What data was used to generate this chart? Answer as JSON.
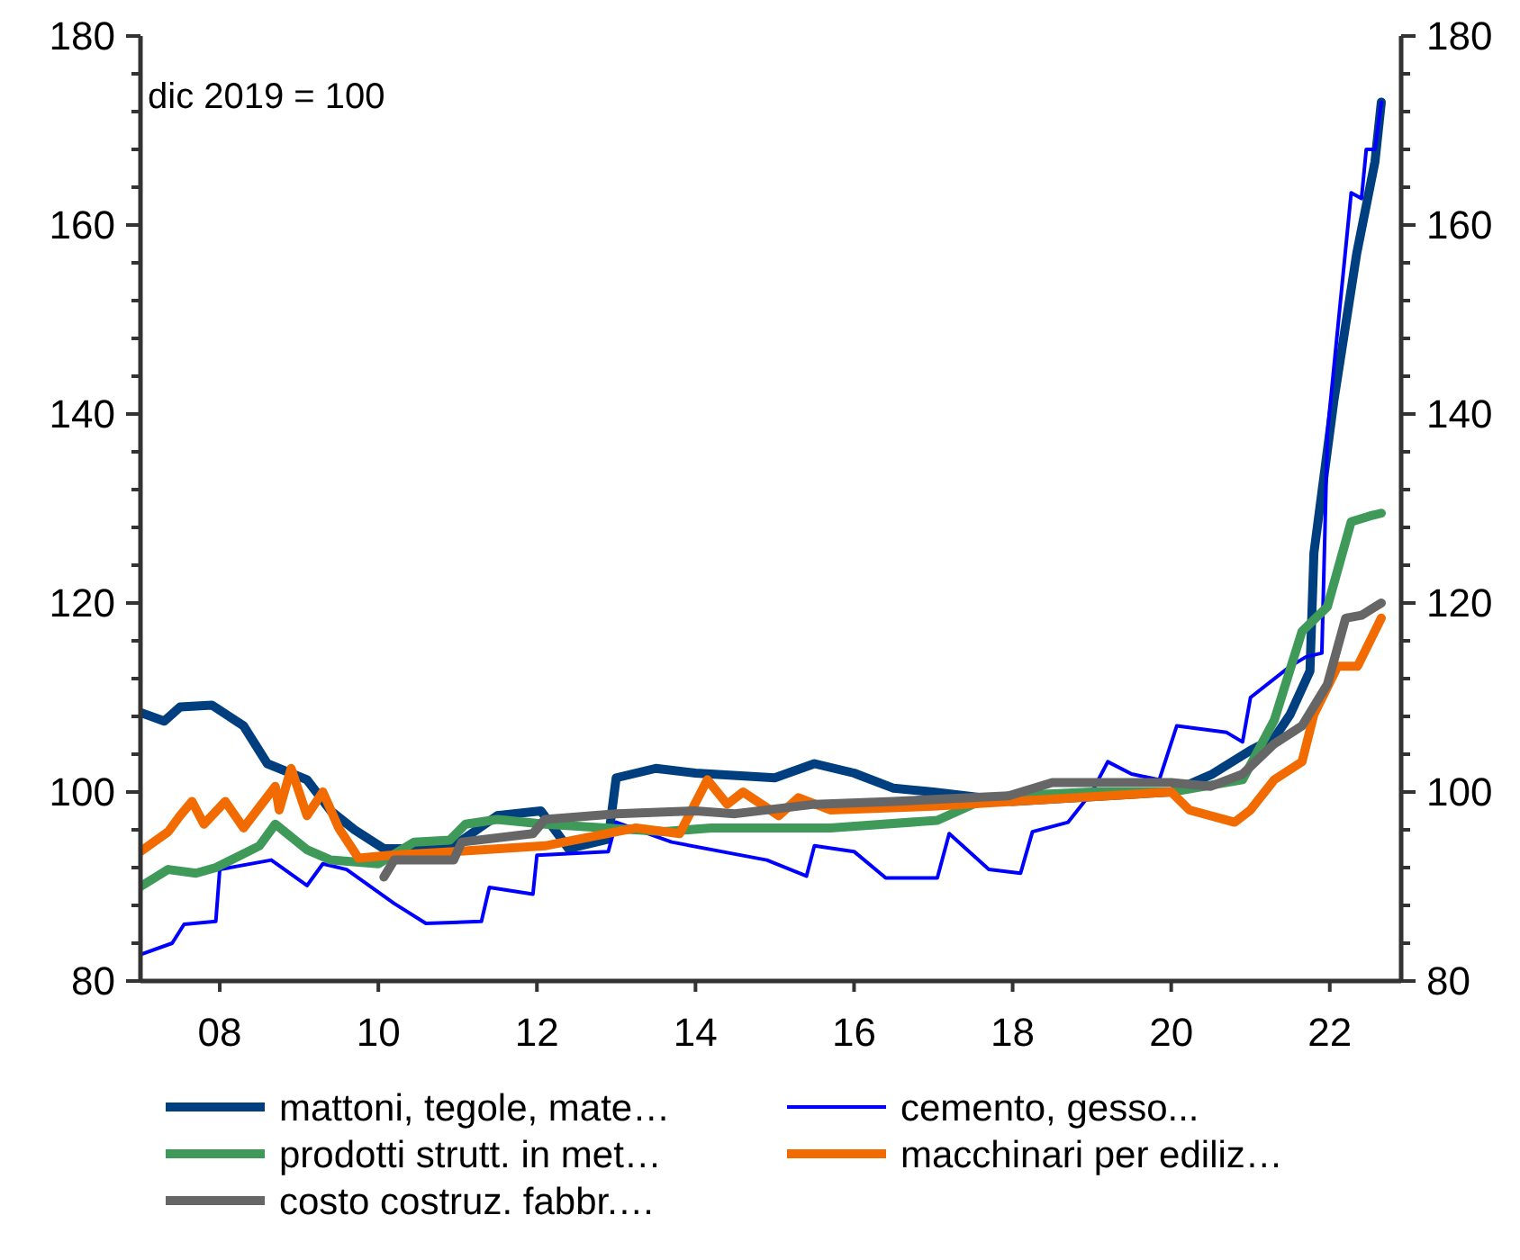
{
  "chart_data": {
    "type": "line",
    "annotations": [
      "dic 2019 = 100"
    ],
    "xlim": [
      2007,
      2022.9
    ],
    "xticks": [
      {
        "value": 2008,
        "label": "08"
      },
      {
        "value": 2010,
        "label": "10"
      },
      {
        "value": 2012,
        "label": "12"
      },
      {
        "value": 2014,
        "label": "14"
      },
      {
        "value": 2016,
        "label": "16"
      },
      {
        "value": 2018,
        "label": "18"
      },
      {
        "value": 2020,
        "label": "20"
      },
      {
        "value": 2022,
        "label": "22"
      }
    ],
    "ylim": [
      80,
      180
    ],
    "yticks": [
      80,
      {
        "value": 84,
        "label": null
      },
      {
        "value": 88,
        "label": null
      },
      {
        "value": 92,
        "label": null
      },
      {
        "value": 96,
        "label": null
      },
      100,
      {
        "value": 104,
        "label": null
      },
      {
        "value": 108,
        "label": null
      },
      {
        "value": 112,
        "label": null
      },
      {
        "value": 116,
        "label": null
      },
      120,
      {
        "value": 124,
        "label": null
      },
      {
        "value": 128,
        "label": null
      },
      {
        "value": 132,
        "label": null
      },
      {
        "value": 136,
        "label": null
      },
      140,
      {
        "value": 144,
        "label": null
      },
      {
        "value": 148,
        "label": null
      },
      {
        "value": 152,
        "label": null
      },
      {
        "value": 156,
        "label": null
      },
      160,
      {
        "value": 164,
        "label": null
      },
      {
        "value": 168,
        "label": null
      },
      {
        "value": 172,
        "label": null
      },
      {
        "value": 176,
        "label": null
      },
      180
    ],
    "y2lim": [
      80,
      180
    ],
    "y2ticks": [
      80,
      {
        "value": 84,
        "label": null
      },
      {
        "value": 88,
        "label": null
      },
      {
        "value": 92,
        "label": null
      },
      {
        "value": 96,
        "label": null
      },
      100,
      {
        "value": 104,
        "label": null
      },
      {
        "value": 108,
        "label": null
      },
      {
        "value": 112,
        "label": null
      },
      {
        "value": 116,
        "label": null
      },
      120,
      {
        "value": 124,
        "label": null
      },
      {
        "value": 128,
        "label": null
      },
      {
        "value": 132,
        "label": null
      },
      {
        "value": 136,
        "label": null
      },
      140,
      {
        "value": 144,
        "label": null
      },
      {
        "value": 148,
        "label": null
      },
      {
        "value": 152,
        "label": null
      },
      {
        "value": 156,
        "label": null
      },
      160,
      {
        "value": 164,
        "label": null
      },
      {
        "value": 168,
        "label": null
      },
      {
        "value": 172,
        "label": null
      },
      {
        "value": 176,
        "label": null
      },
      180
    ],
    "grid": false,
    "legend": "bottom",
    "marker": "none",
    "line_style": "solid",
    "series": [
      {
        "name": "mattoni, tegole, mate…",
        "color": "#003f7f",
        "x": [
          2007,
          2007.3,
          2007.5,
          2007.9,
          2008.3,
          2008.6,
          2009.1,
          2009.4,
          2009.7,
          2010.07,
          2010.9,
          2011.5,
          2012.05,
          2012.4,
          2012.9,
          2013.0,
          2013.5,
          2014,
          2015,
          2015.5,
          2016,
          2016.5,
          2017,
          2017.5,
          2018,
          2019,
          2020,
          2020.52,
          2021.0,
          2021.3,
          2021.5,
          2021.75,
          2021.8,
          2022.05,
          2022.34,
          2022.57,
          2022.65
        ],
        "values": [
          108.4,
          107.5,
          109,
          109.2,
          107,
          103,
          101.3,
          98,
          96,
          94,
          94,
          97.5,
          98,
          94,
          95,
          101.5,
          102.5,
          102,
          101.5,
          103,
          102,
          100.4,
          100,
          99.5,
          99,
          99.5,
          100,
          101.9,
          104.4,
          105.7,
          108.2,
          112.8,
          125.3,
          141.3,
          157,
          166.7,
          173
        ]
      },
      {
        "name": "cemento,  gesso...",
        "color": "#0000ff",
        "x": [
          2007,
          2007.4,
          2007.55,
          2007.95,
          2008.0,
          2008.65,
          2009.1,
          2009.3,
          2009.6,
          2010.2,
          2010.6,
          2011.3,
          2011.4,
          2011.95,
          2012.0,
          2012.9,
          2013.0,
          2013.7,
          2014.9,
          2015.4,
          2015.5,
          2016,
          2016.4,
          2017.05,
          2017.2,
          2017.7,
          2018.1,
          2018.25,
          2018.7,
          2019.0,
          2019.2,
          2019.5,
          2019.85,
          2020.07,
          2020.7,
          2020.9,
          2021.0,
          2021.5,
          2021.7,
          2021.9,
          2021.97,
          2022.27,
          2022.4,
          2022.46,
          2022.57,
          2022.65
        ],
        "values": [
          82.8,
          84,
          86,
          86.3,
          91.8,
          92.8,
          90.1,
          92.4,
          91.8,
          88.2,
          86.1,
          86.3,
          89.9,
          89.2,
          93.3,
          93.7,
          96.8,
          94.7,
          92.8,
          91.1,
          94.3,
          93.7,
          90.9,
          90.9,
          95.6,
          91.8,
          91.4,
          95.8,
          96.8,
          100,
          103.2,
          101.9,
          101.3,
          107,
          106.3,
          105.3,
          110,
          113.3,
          114.3,
          114.7,
          138,
          163.4,
          162.8,
          168,
          168,
          173
        ]
      },
      {
        "name": "prodotti strutt. in met…",
        "color": "#3f9a5a",
        "x": [
          2007,
          2007.35,
          2007.7,
          2007.95,
          2008.5,
          2008.7,
          2009.1,
          2009.4,
          2010.0,
          2010.45,
          2010.9,
          2011.1,
          2011.5,
          2012.1,
          2013.6,
          2014.2,
          2015.7,
          2017.05,
          2017.5,
          2017.95,
          2019,
          2020,
          2020.9,
          2021.3,
          2021.65,
          2021.97,
          2022.27,
          2022.5,
          2022.65
        ],
        "values": [
          90,
          91.8,
          91.4,
          92,
          94.3,
          96.6,
          93.9,
          92.8,
          92.4,
          94.7,
          94.9,
          96.6,
          97.1,
          96.6,
          95.8,
          96.2,
          96.2,
          97,
          98.7,
          99.6,
          100,
          100,
          101.3,
          107.6,
          117,
          119.6,
          128.6,
          129.2,
          129.5
        ]
      },
      {
        "name": "macchinari per ediliz…",
        "color": "#f26b00",
        "x": [
          2007,
          2007.35,
          2007.5,
          2007.65,
          2007.8,
          2008.07,
          2008.3,
          2008.7,
          2008.75,
          2008.9,
          2009.1,
          2009.3,
          2009.5,
          2009.75,
          2010.15,
          2010.95,
          2012.1,
          2013.25,
          2013.8,
          2014.15,
          2014.4,
          2014.6,
          2015.05,
          2015.3,
          2015.7,
          2017,
          2019,
          2020,
          2020.23,
          2020.8,
          2021.0,
          2021.3,
          2021.65,
          2021.8,
          2022.1,
          2022.35,
          2022.65
        ],
        "values": [
          93.7,
          95.8,
          97.5,
          99,
          96.6,
          99,
          96.2,
          100.6,
          98.1,
          102.5,
          97.5,
          100,
          96.2,
          93,
          93.3,
          93.7,
          94.3,
          96.2,
          95.6,
          101.3,
          98.7,
          100,
          97.5,
          99.4,
          98.1,
          98.5,
          99.5,
          100,
          98.1,
          96.8,
          98.1,
          101.3,
          103.2,
          108.2,
          113.3,
          113.3,
          118.4
        ]
      },
      {
        "name": "costo costruz. fabbr.…",
        "color": "#666666",
        "x": [
          2010.07,
          2010.2,
          2010.95,
          2011.05,
          2011.95,
          2012.1,
          2013.0,
          2014,
          2014.5,
          2015.5,
          2016.5,
          2017.95,
          2018.5,
          2019,
          2020,
          2020.5,
          2020.9,
          2021.3,
          2021.65,
          2021.97,
          2022.2,
          2022.4,
          2022.65
        ],
        "values": [
          91,
          92.8,
          92.8,
          94.7,
          95.6,
          97.1,
          97.7,
          98,
          97.7,
          98.7,
          99,
          99.6,
          101,
          101,
          101,
          100.6,
          101.9,
          105.1,
          107,
          111.4,
          118.4,
          118.7,
          120
        ]
      }
    ]
  }
}
